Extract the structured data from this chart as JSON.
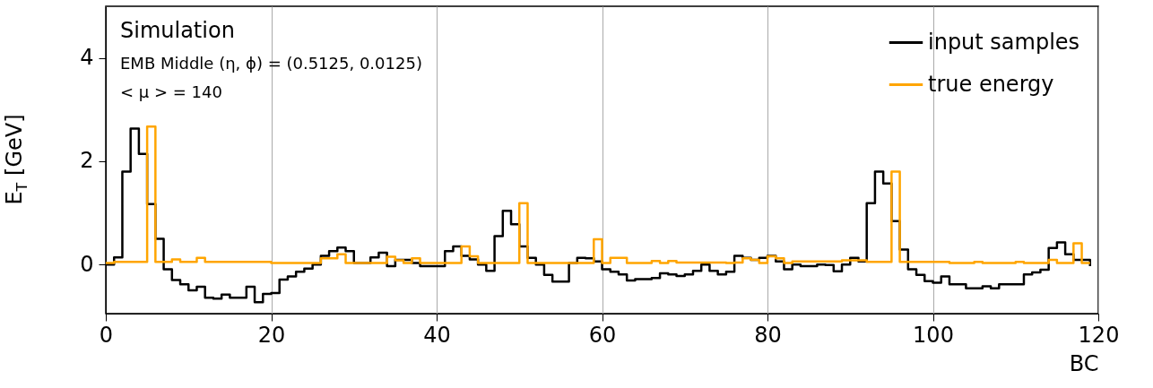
{
  "chart_data": {
    "type": "step",
    "xlabel": "BC",
    "ylabel": "E$_{T}$ [GeV]",
    "annotations": [
      "Simulation",
      "EMB Middle (η, ϕ) = (0.5125, 0.0125)",
      "< μ > = 140"
    ],
    "x": [
      0,
      1,
      2,
      3,
      4,
      5,
      6,
      7,
      8,
      9,
      10,
      11,
      12,
      13,
      14,
      15,
      16,
      17,
      18,
      19,
      20,
      21,
      22,
      23,
      24,
      25,
      26,
      27,
      28,
      29,
      30,
      31,
      32,
      33,
      34,
      35,
      36,
      37,
      38,
      39,
      40,
      41,
      42,
      43,
      44,
      45,
      46,
      47,
      48,
      49,
      50,
      51,
      52,
      53,
      54,
      55,
      56,
      57,
      58,
      59,
      60,
      61,
      62,
      63,
      64,
      65,
      66,
      67,
      68,
      69,
      70,
      71,
      72,
      73,
      74,
      75,
      76,
      77,
      78,
      79,
      80,
      81,
      82,
      83,
      84,
      85,
      86,
      87,
      88,
      89,
      90,
      91,
      92,
      93,
      94,
      95,
      96,
      97,
      98,
      99,
      100,
      101,
      102,
      103,
      104,
      105,
      106,
      107,
      108,
      109,
      110,
      111,
      112,
      113,
      114,
      115,
      116,
      117,
      118,
      119
    ],
    "series": [
      {
        "name": "input samples",
        "color": "#000000",
        "values": [
          0.0,
          0.14,
          1.8,
          2.63,
          2.14,
          1.17,
          0.5,
          -0.09,
          -0.3,
          -0.38,
          -0.5,
          -0.43,
          -0.64,
          -0.66,
          -0.58,
          -0.64,
          -0.64,
          -0.43,
          -0.73,
          -0.57,
          -0.55,
          -0.29,
          -0.23,
          -0.14,
          -0.08,
          0.0,
          0.17,
          0.26,
          0.33,
          0.26,
          0.03,
          0.03,
          0.14,
          0.23,
          -0.03,
          0.09,
          0.09,
          0.03,
          -0.03,
          -0.03,
          -0.03,
          0.26,
          0.35,
          0.17,
          0.1,
          0.0,
          -0.12,
          0.55,
          1.04,
          0.78,
          0.35,
          0.13,
          0.0,
          -0.2,
          -0.33,
          -0.33,
          0.03,
          0.13,
          0.12,
          0.06,
          -0.09,
          -0.14,
          -0.19,
          -0.31,
          -0.28,
          -0.28,
          -0.26,
          -0.17,
          -0.19,
          -0.22,
          -0.19,
          -0.12,
          0.0,
          -0.12,
          -0.19,
          -0.14,
          0.17,
          0.13,
          0.09,
          0.13,
          0.17,
          0.06,
          -0.09,
          0.0,
          -0.03,
          -0.03,
          0.0,
          -0.01,
          -0.13,
          0.0,
          0.13,
          0.06,
          1.19,
          1.8,
          1.57,
          0.84,
          0.29,
          -0.09,
          -0.2,
          -0.32,
          -0.35,
          -0.23,
          -0.38,
          -0.38,
          -0.46,
          -0.46,
          -0.42,
          -0.46,
          -0.38,
          -0.38,
          -0.38,
          -0.19,
          -0.15,
          -0.1,
          0.32,
          0.43,
          0.2,
          0.09,
          0.09,
          -0.03
        ]
      },
      {
        "name": "true energy",
        "color": "#ffa500",
        "values": [
          0.03,
          0.05,
          0.05,
          0.05,
          0.05,
          2.67,
          0.05,
          0.05,
          0.1,
          0.05,
          0.05,
          0.13,
          0.05,
          0.05,
          0.05,
          0.05,
          0.05,
          0.05,
          0.05,
          0.05,
          0.03,
          0.03,
          0.03,
          0.03,
          0.03,
          0.03,
          0.12,
          0.12,
          0.2,
          0.03,
          0.03,
          0.03,
          0.03,
          0.03,
          0.15,
          0.08,
          0.03,
          0.12,
          0.03,
          0.03,
          0.03,
          0.03,
          0.03,
          0.35,
          0.16,
          0.03,
          0.03,
          0.03,
          0.03,
          0.03,
          1.19,
          0.03,
          0.03,
          0.03,
          0.03,
          0.03,
          0.03,
          0.03,
          0.03,
          0.49,
          0.03,
          0.13,
          0.13,
          0.03,
          0.03,
          0.03,
          0.07,
          0.03,
          0.07,
          0.04,
          0.04,
          0.04,
          0.04,
          0.04,
          0.04,
          0.03,
          0.04,
          0.12,
          0.09,
          0.03,
          0.16,
          0.12,
          0.03,
          0.06,
          0.06,
          0.06,
          0.06,
          0.06,
          0.06,
          0.08,
          0.08,
          0.08,
          0.05,
          0.05,
          0.05,
          1.8,
          0.05,
          0.05,
          0.05,
          0.05,
          0.05,
          0.05,
          0.03,
          0.03,
          0.03,
          0.05,
          0.03,
          0.03,
          0.03,
          0.03,
          0.05,
          0.03,
          0.03,
          0.03,
          0.09,
          0.03,
          0.03,
          0.41,
          0.03,
          0.03
        ]
      }
    ],
    "xlim": [
      0,
      120
    ],
    "xticks": [
      0,
      20,
      40,
      60,
      80,
      100,
      120
    ],
    "ylim": [
      -0.95,
      5
    ],
    "yticks": [
      0,
      2,
      4
    ],
    "grid": "x",
    "legend": "top right"
  }
}
